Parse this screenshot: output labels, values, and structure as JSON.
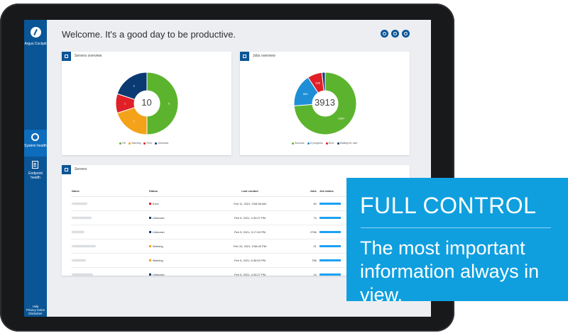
{
  "app": {
    "name": "Argus Cockpit",
    "welcome": "Welcome. It's a good day to be productive."
  },
  "sidebar": {
    "items": [
      {
        "label": "System health",
        "active": true,
        "icon": "system-health-icon"
      },
      {
        "label": "Endpoint health",
        "active": false,
        "icon": "endpoint-health-icon"
      }
    ],
    "bottom_links": [
      "Help",
      "Privacy notice",
      "Disclaimer"
    ]
  },
  "toolbar": {
    "buttons": [
      "refresh-icon",
      "notification-icon",
      "user-icon"
    ]
  },
  "servers_overview": {
    "title": "Servers overview",
    "center_value": "10",
    "legend": [
      "OK",
      "Warning",
      "Error",
      "Unknown"
    ]
  },
  "jobs_overview": {
    "title": "Jobs overview",
    "center_value": "3913",
    "legend": [
      "Success",
      "In progress",
      "Error",
      "Waiting for user"
    ]
  },
  "servers_table": {
    "title": "Servers",
    "columns": [
      "Name",
      "Status",
      "Last contact",
      "Jobs",
      "Job status"
    ],
    "rows": [
      {
        "status": "Error",
        "status_color": "#e01f27",
        "last_contact": "Feb 11, 2021, 9:08:36 AM",
        "jobs": "40"
      },
      {
        "status": "Unknown",
        "status_color": "#0b3a73",
        "last_contact": "Feb 9, 2021, 4:34:27 PM",
        "jobs": "74"
      },
      {
        "status": "Unknown",
        "status_color": "#0b3a73",
        "last_contact": "Feb 9, 2021, 3:17:45 PM",
        "jobs": "2756"
      },
      {
        "status": "Warning",
        "status_color": "#f3a21a",
        "last_contact": "Feb 10, 2021, 5:56:40 PM",
        "jobs": "21"
      },
      {
        "status": "Warning",
        "status_color": "#f3a21a",
        "last_contact": "Feb 9, 2021, 6:36:53 PM",
        "jobs": "756"
      },
      {
        "status": "Unknown",
        "status_color": "#0b3a73",
        "last_contact": "Feb 9, 2021, 4:34:27 PM",
        "jobs": "14"
      }
    ]
  },
  "banner": {
    "title": "FULL CONTROL",
    "subtitle": "The most important information always in view."
  },
  "chart_data": [
    {
      "type": "pie",
      "title": "Servers overview",
      "categories": [
        "OK",
        "Warning",
        "Error",
        "Unknown"
      ],
      "values": [
        5,
        2,
        1,
        2
      ],
      "colors": [
        "#5cb42e",
        "#f3a21a",
        "#e01f27",
        "#0b3a73"
      ],
      "data_labels": [
        "5",
        "2",
        "1",
        "2"
      ]
    },
    {
      "type": "pie",
      "title": "Jobs overview",
      "categories": [
        "Success",
        "In progress",
        "Error",
        "Waiting for user"
      ],
      "values": [
        2887,
        663,
        298,
        65
      ],
      "colors": [
        "#5cb42e",
        "#1e8fd6",
        "#e01f27",
        "#0b3a73"
      ],
      "data_labels": [
        "2887",
        "663",
        "298",
        ""
      ]
    }
  ]
}
